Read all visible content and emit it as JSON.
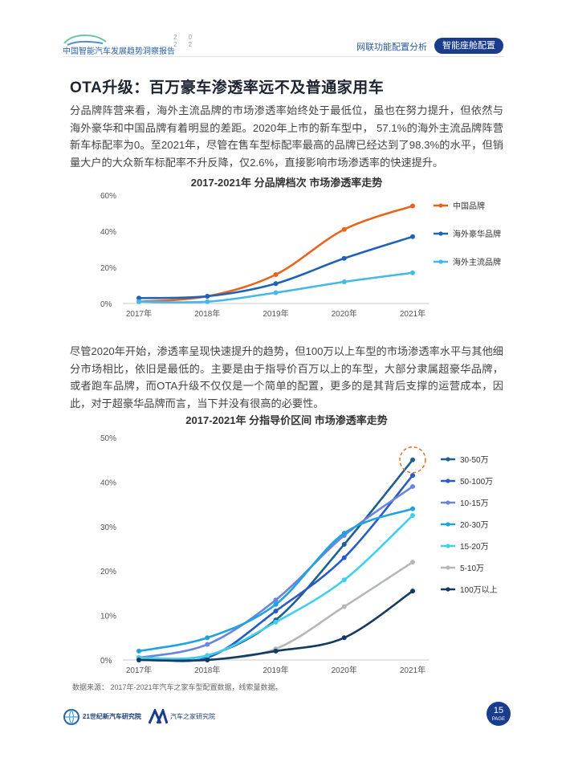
{
  "header": {
    "logo_year": "2 0 2 2",
    "logo_text": "中国智能汽车发展趋势洞察报告",
    "section": "网联功能配置分析",
    "badge": "智能座舱配置"
  },
  "title": "OTA升级：百万豪车渗透率远不及普通家用车",
  "para1": "分品牌阵营来看，海外主流品牌的市场渗透率始终处于最低位，虽也在努力提升，但依然与海外豪华和中国品牌有着明显的差距。2020年上市的新车型中， 57.1%的海外主流品牌阵营新车标配率为0。至2021年，尽管在售车型标配率最高的品牌已经达到了98.3%的水平，但销量大户的大众新车标配率不升反降，仅2.6%，直接影响市场渗透率的快速提升。",
  "para2": "尽管2020年开始，渗透率呈现快速提升的趋势，但100万以上车型的市场渗透率水平与其他细分市场相比，依旧是最低的。主要是由于指导价百万以上的车型，大部分隶属超豪华品牌，或者跑车品牌，而OTA升级不仅仅是一个简单的配置，更多的是其背后支撑的运营成本，因此，对于超豪华品牌而言，当下并没有很高的必要性。",
  "source": "数据来源： 2017年-2021年汽车之家车型配置数据，线索量数据。",
  "footer": {
    "logo1": "21世纪新汽车研究院",
    "logo2": "汽车之家研究院",
    "page_number": "15",
    "page_label": "PAGE"
  },
  "chart_data": [
    {
      "type": "line",
      "title": "2017-2021年 分品牌档次 市场渗透率走势",
      "categories": [
        "2017年",
        "2018年",
        "2019年",
        "2020年",
        "2021年"
      ],
      "yticks": [
        "0%",
        "20%",
        "40%",
        "60%"
      ],
      "ylim": [
        0,
        60
      ],
      "legend_position": "right",
      "series": [
        {
          "name": "中国品牌",
          "color": "#e8641c",
          "values": [
            1,
            4,
            16,
            41,
            54
          ]
        },
        {
          "name": "海外豪华品牌",
          "color": "#1f63b8",
          "values": [
            3,
            4,
            11,
            25,
            37
          ]
        },
        {
          "name": "海外主流品牌",
          "color": "#45b8ea",
          "values": [
            1,
            1,
            6,
            12,
            17
          ]
        }
      ]
    },
    {
      "type": "line",
      "title": "2017-2021年 分指导价区间 市场渗透率走势",
      "categories": [
        "2017年",
        "2018年",
        "2019年",
        "2020年",
        "2021年"
      ],
      "yticks": [
        "0%",
        "10%",
        "20%",
        "30%",
        "40%",
        "50%"
      ],
      "ylim": [
        0,
        50
      ],
      "legend_position": "right",
      "highlight": {
        "series": "30-50万",
        "category": "2021年"
      },
      "series": [
        {
          "name": "30-50万",
          "color": "#1d5f91",
          "values": [
            0.5,
            1,
            9,
            26,
            45
          ]
        },
        {
          "name": "50-100万",
          "color": "#2a5bc4",
          "values": [
            0.5,
            0.5,
            11,
            23,
            41.5
          ]
        },
        {
          "name": "10-15万",
          "color": "#6a86dc",
          "values": [
            0.5,
            3.5,
            13.5,
            28,
            39
          ]
        },
        {
          "name": "20-30万",
          "color": "#1ea3e0",
          "values": [
            2,
            5,
            12.5,
            28.5,
            34
          ]
        },
        {
          "name": "15-20万",
          "color": "#3fd0ee",
          "values": [
            0.5,
            1,
            8.5,
            18,
            32.5
          ]
        },
        {
          "name": "5-10万",
          "color": "#b5b7bb",
          "values": [
            0,
            0,
            2.5,
            12,
            22
          ]
        },
        {
          "name": "100万以上",
          "color": "#123a64",
          "values": [
            0,
            0,
            2,
            5,
            15.5
          ]
        }
      ]
    }
  ]
}
